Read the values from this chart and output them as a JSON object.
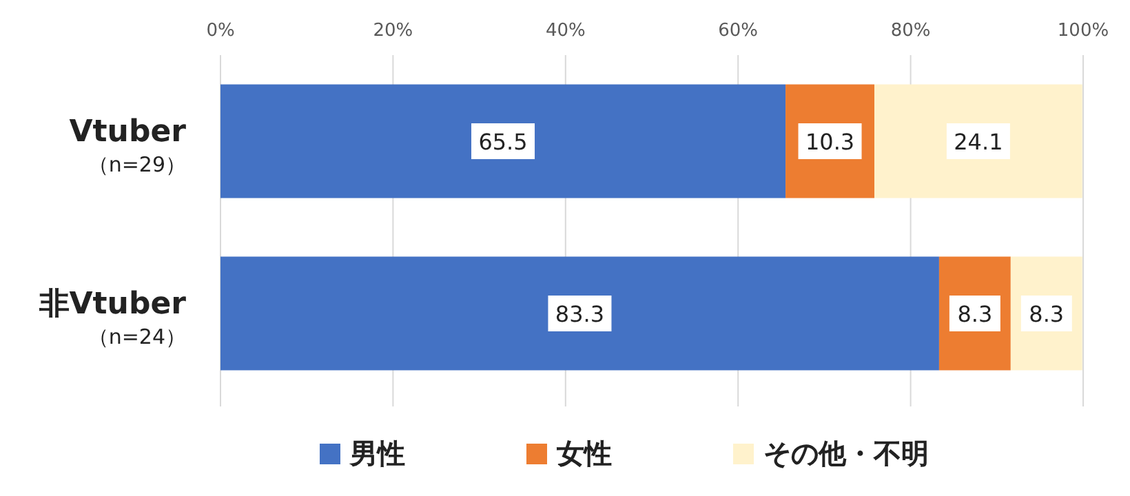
{
  "chart_data": {
    "type": "bar",
    "orientation": "horizontal",
    "stacked": true,
    "categories": [
      "Vtuber\n（n=29）",
      "非Vtuber\n（n=24）"
    ],
    "series": [
      {
        "name": "男性",
        "color": "#4472c4",
        "values": [
          65.5,
          83.3
        ]
      },
      {
        "name": "女性",
        "color": "#ed7d31",
        "values": [
          10.3,
          8.3
        ]
      },
      {
        "name": "その他・不明",
        "color": "#fff2cc",
        "values": [
          24.1,
          8.3
        ]
      }
    ],
    "xlim": [
      0,
      100
    ],
    "xticks": [
      {
        "value": 0,
        "label": "0%"
      },
      {
        "value": 20,
        "label": "20%"
      },
      {
        "value": 40,
        "label": "40%"
      },
      {
        "value": 60,
        "label": "60%"
      },
      {
        "value": 80,
        "label": "80%"
      },
      {
        "value": 100,
        "label": "100%"
      }
    ],
    "grid": "x",
    "legend": "bottom",
    "data_labels": true
  }
}
